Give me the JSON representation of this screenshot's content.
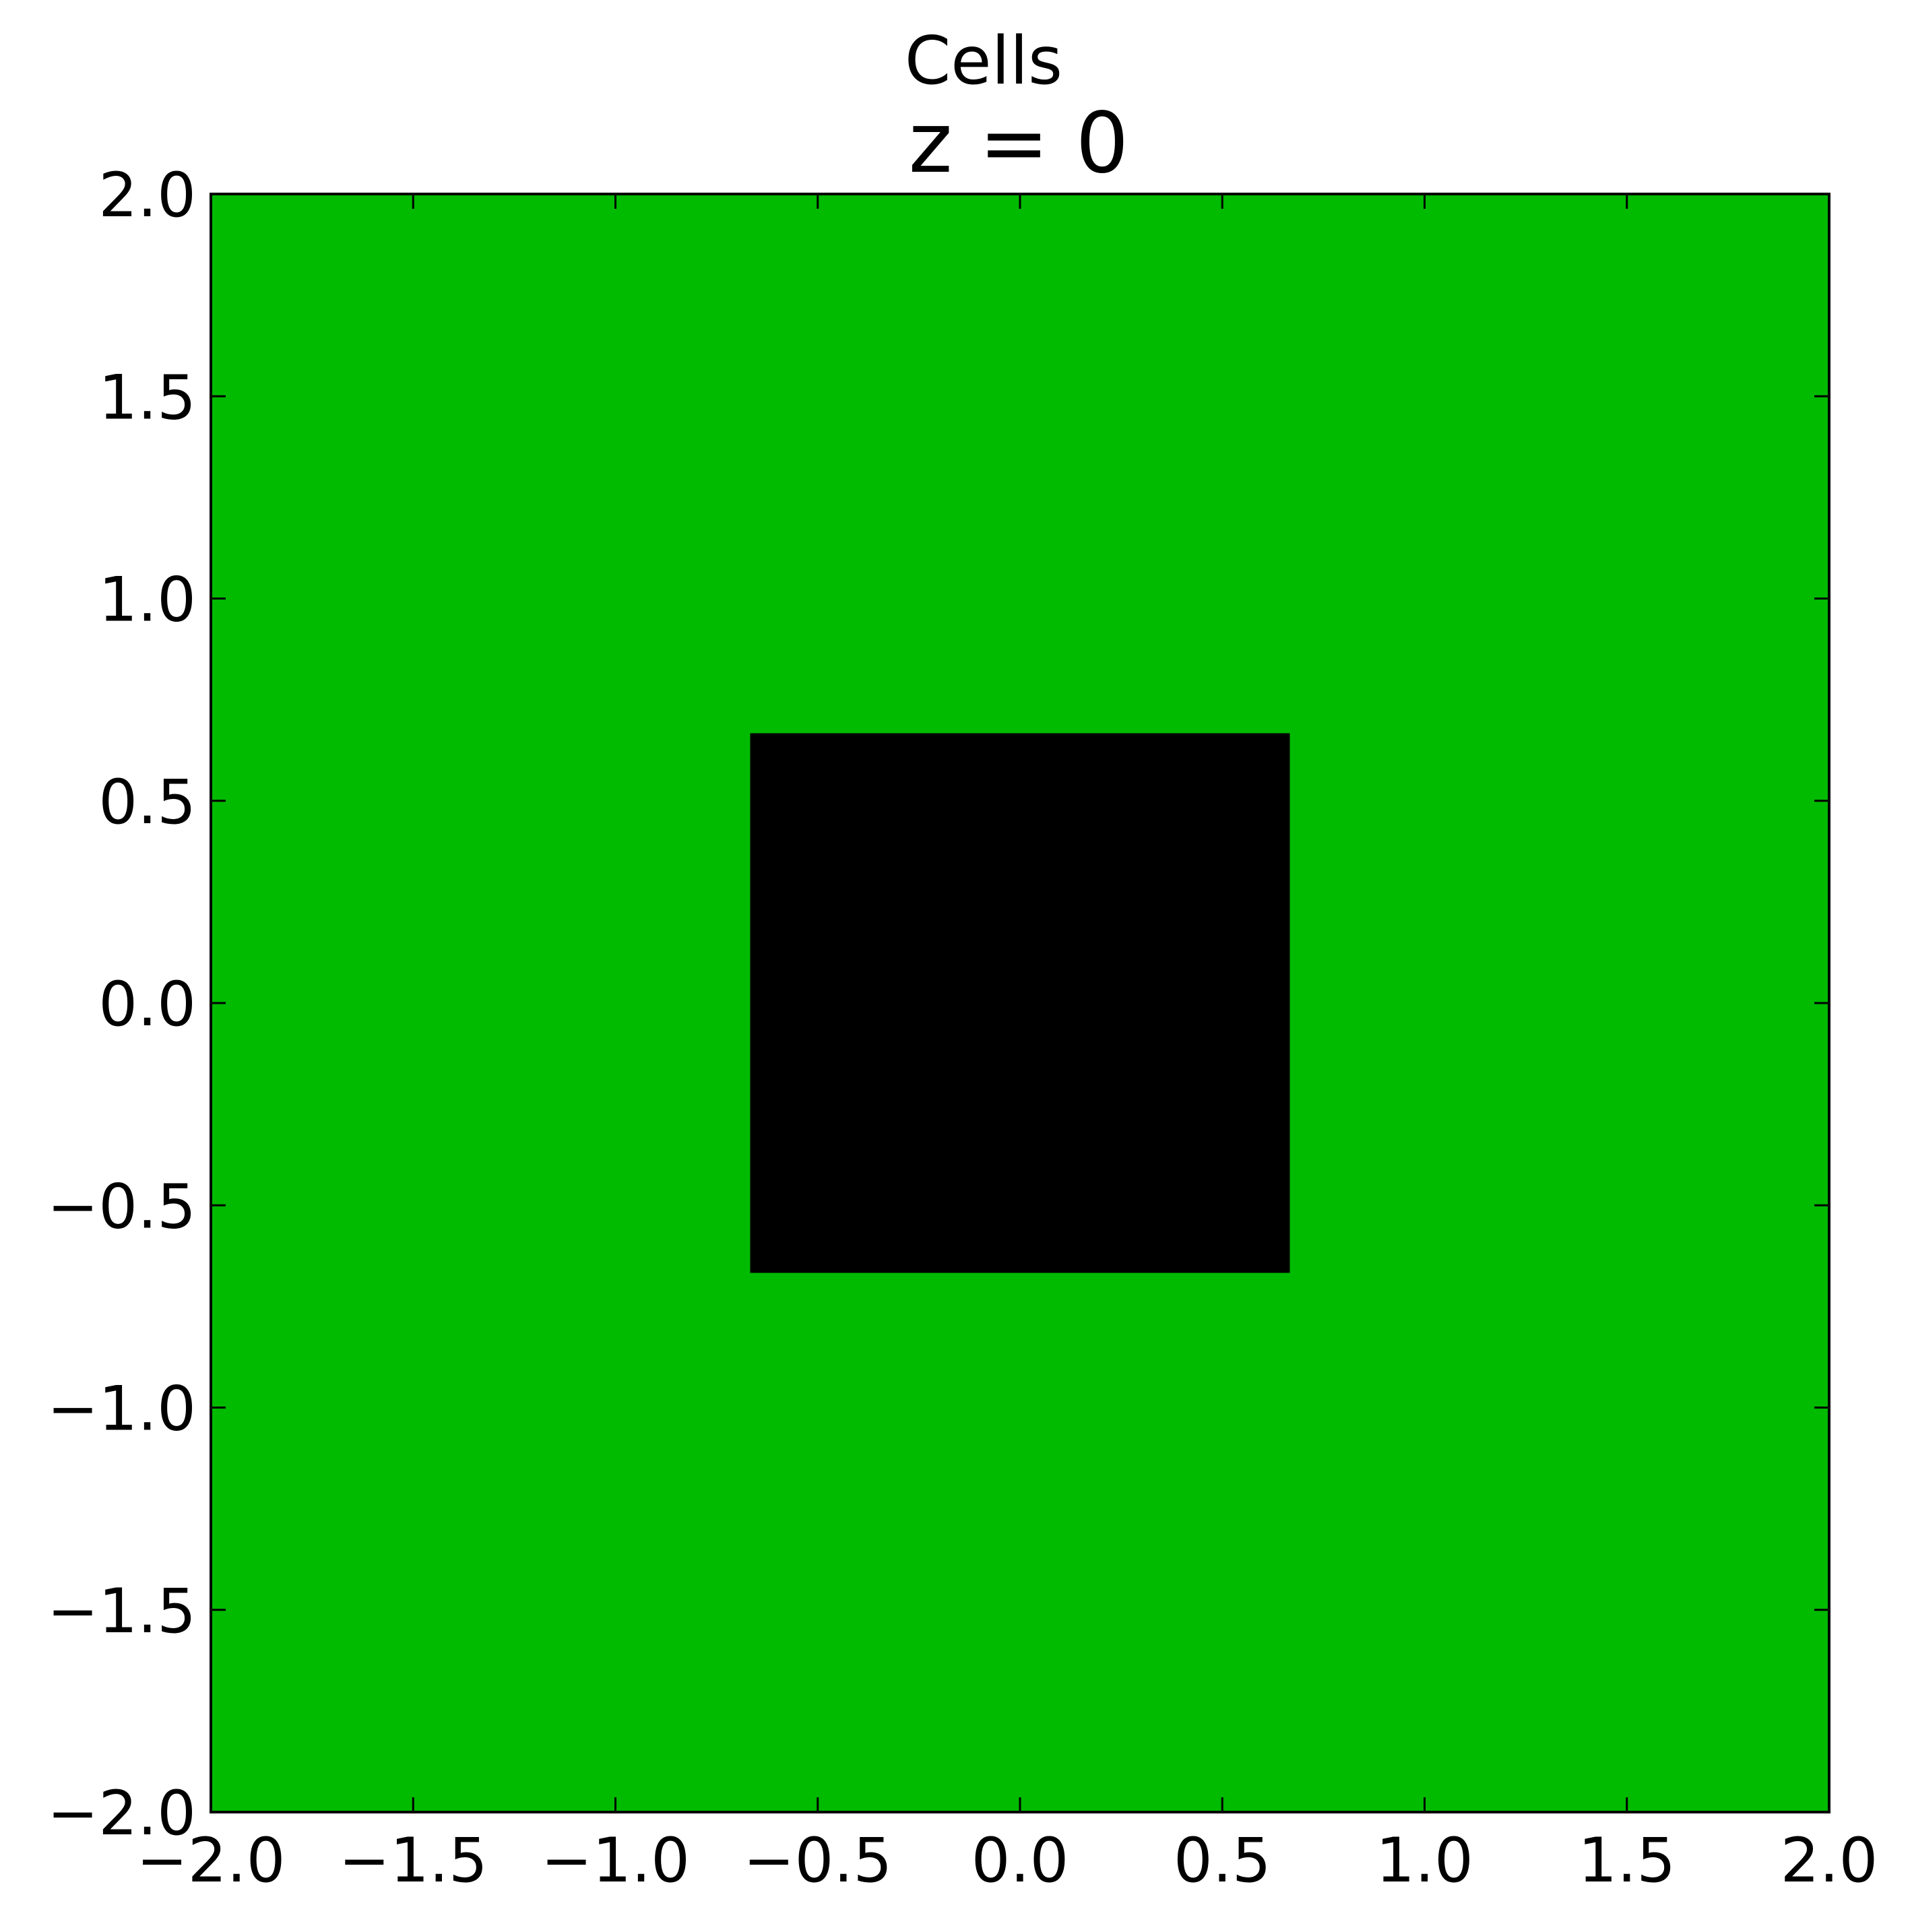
{
  "chart_data": {
    "type": "heatmap",
    "title": "Cells",
    "subtitle": "z = 0",
    "xlabel": "",
    "ylabel": "",
    "xlim": [
      -2.0,
      2.0
    ],
    "ylim": [
      -2.0,
      2.0
    ],
    "grid": false,
    "xticks": [
      -2.0,
      -1.5,
      -1.0,
      -0.5,
      0.0,
      0.5,
      1.0,
      1.5,
      2.0
    ],
    "yticks": [
      -2.0,
      -1.5,
      -1.0,
      -0.5,
      0.0,
      0.5,
      1.0,
      1.5,
      2.0
    ],
    "xtick_labels": [
      "−2.0",
      "−1.5",
      "−1.0",
      "−0.5",
      "0.0",
      "0.5",
      "1.0",
      "1.5",
      "2.0"
    ],
    "ytick_labels": [
      "−2.0",
      "−1.5",
      "−1.0",
      "−0.5",
      "0.0",
      "0.5",
      "1.0",
      "1.5",
      "2.0"
    ],
    "background_color": "#00bb00",
    "regions": [
      {
        "x": [
          -0.667,
          0.667
        ],
        "y": [
          -0.667,
          0.667
        ],
        "color": "#000000"
      }
    ]
  }
}
